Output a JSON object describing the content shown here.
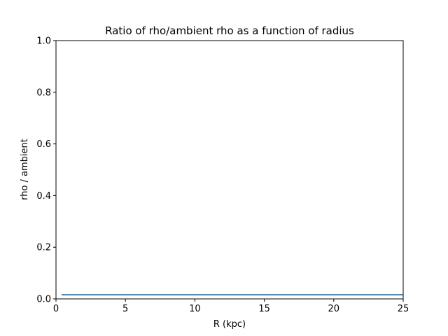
{
  "chart_data": {
    "type": "line",
    "title": "Ratio of rho/ambient rho as a function of radius",
    "xlabel": "R (kpc)",
    "ylabel": "rho / ambient",
    "xlim": [
      0,
      25
    ],
    "ylim": [
      0,
      1
    ],
    "xticks": [
      0,
      5,
      10,
      15,
      20,
      25
    ],
    "xtick_labels": [
      "0",
      "5",
      "10",
      "15",
      "20",
      "25"
    ],
    "yticks": [
      0,
      0.2,
      0.4,
      0.6,
      0.8,
      1.0
    ],
    "ytick_labels": [
      "0.0",
      "0.2",
      "0.4",
      "0.6",
      "0.8",
      "1.0"
    ],
    "grid": false,
    "series": [
      {
        "color": "#1f77b4",
        "x": [
          0.4,
          25
        ],
        "y": [
          0.016,
          0.016
        ]
      }
    ]
  }
}
